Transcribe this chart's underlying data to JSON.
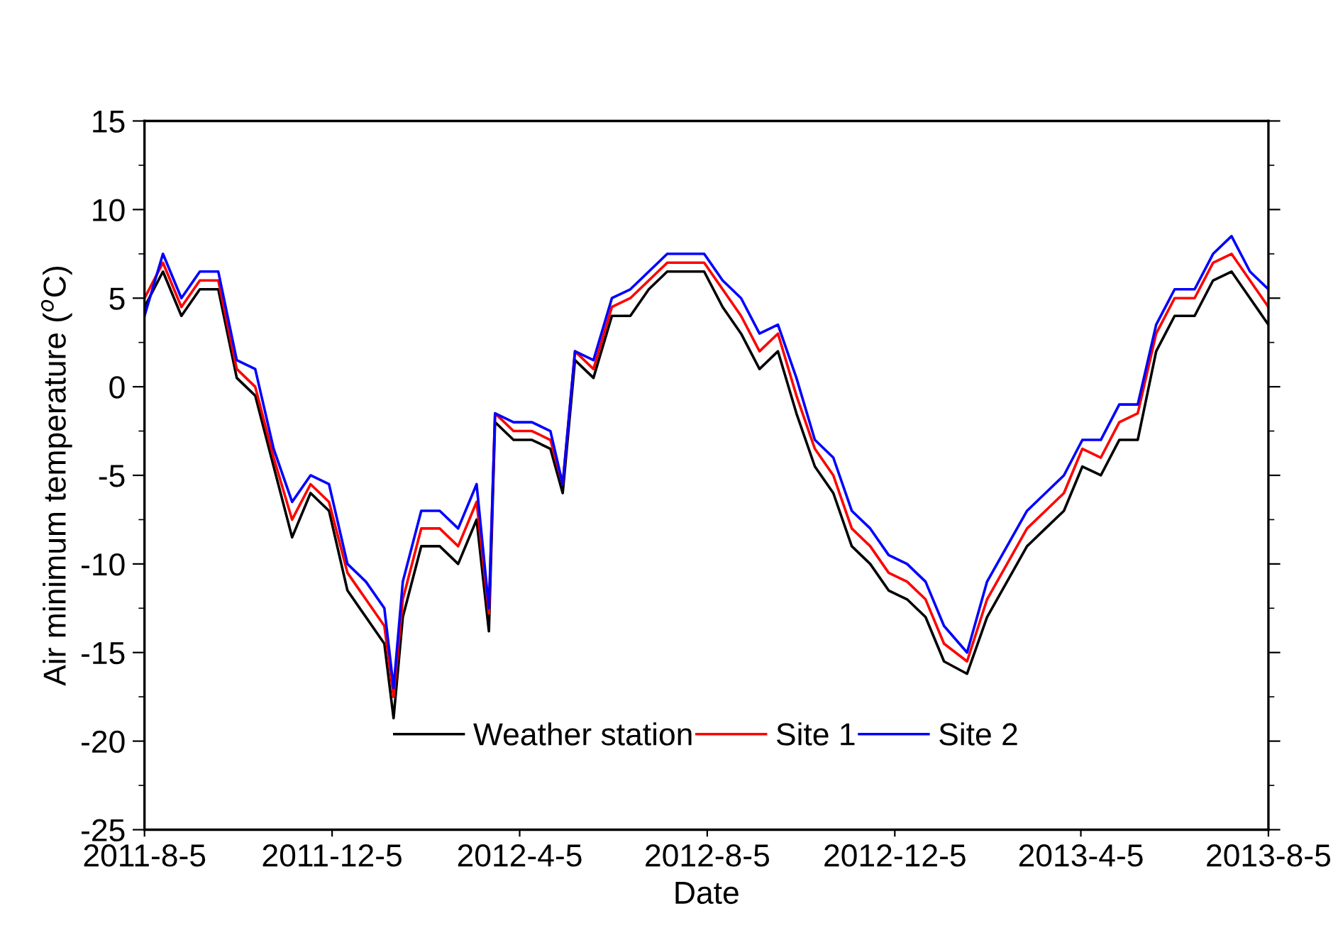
{
  "chart_data": {
    "type": "line",
    "xlabel": "Date",
    "ylabel": "Air minimum temperature ($^{o}$C)",
    "x": [
      "2011-08-05",
      "2011-08-17",
      "2011-08-29",
      "2011-09-10",
      "2011-09-22",
      "2011-10-04",
      "2011-10-16",
      "2011-10-28",
      "2011-11-09",
      "2011-11-21",
      "2011-12-03",
      "2011-12-15",
      "2011-12-27",
      "2012-01-08",
      "2012-01-14",
      "2012-01-20",
      "2012-02-01",
      "2012-02-13",
      "2012-02-25",
      "2012-03-08",
      "2012-03-16",
      "2012-03-20",
      "2012-04-01",
      "2012-04-13",
      "2012-04-25",
      "2012-05-03",
      "2012-05-11",
      "2012-05-23",
      "2012-06-04",
      "2012-06-16",
      "2012-06-28",
      "2012-07-10",
      "2012-07-22",
      "2012-08-03",
      "2012-08-15",
      "2012-08-27",
      "2012-09-08",
      "2012-09-20",
      "2012-10-02",
      "2012-10-14",
      "2012-10-26",
      "2012-11-07",
      "2012-11-19",
      "2012-12-01",
      "2012-12-13",
      "2012-12-25",
      "2013-01-06",
      "2013-01-21",
      "2013-02-03",
      "2013-02-16",
      "2013-03-01",
      "2013-03-13",
      "2013-03-25",
      "2013-04-06",
      "2013-04-18",
      "2013-04-30",
      "2013-05-12",
      "2013-05-24",
      "2013-06-05",
      "2013-06-18",
      "2013-06-30",
      "2013-07-12",
      "2013-07-24",
      "2013-08-05"
    ],
    "series": [
      {
        "name": "Weather station",
        "color": "#000000",
        "values": [
          4.5,
          6.5,
          4.0,
          5.5,
          5.5,
          0.5,
          -0.5,
          -4.5,
          -8.5,
          -6,
          -7,
          -11.5,
          -13,
          -14.5,
          -18.7,
          -13,
          -9,
          -9,
          -10,
          -7.5,
          -13.8,
          -2,
          -3,
          -3,
          -3.5,
          -6,
          1.5,
          0.5,
          4,
          4,
          5.5,
          6.5,
          6.5,
          6.5,
          4.5,
          3,
          1,
          2,
          -1.5,
          -4.5,
          -6,
          -9,
          -10,
          -11.5,
          -12,
          -13,
          -15.5,
          -16.2,
          -13,
          -11,
          -9,
          -8,
          -7,
          -4.5,
          -5,
          -3,
          -3,
          2,
          4,
          4,
          6,
          6.5,
          5,
          3.5
        ]
      },
      {
        "name": "Site 1",
        "color": "#ff0000",
        "values": [
          5,
          7,
          4.5,
          6,
          6,
          1,
          0,
          -4,
          -7.5,
          -5.5,
          -6.5,
          -10.5,
          -12,
          -13.5,
          -17.5,
          -12,
          -8,
          -8,
          -9,
          -6.5,
          -12.8,
          -1.5,
          -2.5,
          -2.5,
          -3,
          -5.5,
          2,
          1,
          4.5,
          5,
          6,
          7,
          7,
          7,
          5.5,
          4,
          2,
          3,
          -0.5,
          -3.5,
          -5,
          -8,
          -9,
          -10.5,
          -11,
          -12,
          -14.5,
          -15.5,
          -12,
          -10,
          -8,
          -7,
          -6,
          -3.5,
          -4,
          -2,
          -1.5,
          3,
          5,
          5,
          7,
          7.5,
          6,
          4.5
        ]
      },
      {
        "name": "Site 2",
        "color": "#0000ff",
        "values": [
          4,
          7.5,
          5,
          6.5,
          6.5,
          1.5,
          1,
          -3.5,
          -6.5,
          -5,
          -5.5,
          -10,
          -11,
          -12.5,
          -17,
          -11,
          -7,
          -7,
          -8,
          -5.5,
          -12.5,
          -1.5,
          -2,
          -2,
          -2.5,
          -5.5,
          2,
          1.5,
          5,
          5.5,
          6.5,
          7.5,
          7.5,
          7.5,
          6,
          5,
          3,
          3.5,
          0.5,
          -3,
          -4,
          -7,
          -8,
          -9.5,
          -10,
          -11,
          -13.5,
          -15,
          -11,
          -9,
          -7,
          -6,
          -5,
          -3,
          -3,
          -1,
          -1,
          3.5,
          5.5,
          5.5,
          7.5,
          8.5,
          6.5,
          5.5
        ]
      }
    ],
    "xlim": [
      "2011-08-05",
      "2013-08-05"
    ],
    "xticks": [
      {
        "value": "2011-08-05",
        "label": "2011-8-5"
      },
      {
        "value": "2011-12-05",
        "label": "2011-12-5"
      },
      {
        "value": "2012-04-05",
        "label": "2012-4-5"
      },
      {
        "value": "2012-08-05",
        "label": "2012-8-5"
      },
      {
        "value": "2012-12-05",
        "label": "2012-12-5"
      },
      {
        "value": "2013-04-05",
        "label": "2013-4-5"
      },
      {
        "value": "2013-08-05",
        "label": "2013-8-5"
      }
    ],
    "ylim": [
      -25,
      15
    ],
    "yticks": [
      -25,
      -20,
      -15,
      -10,
      -5,
      0,
      5,
      10,
      15
    ],
    "legend": "bottom",
    "grid": false
  }
}
